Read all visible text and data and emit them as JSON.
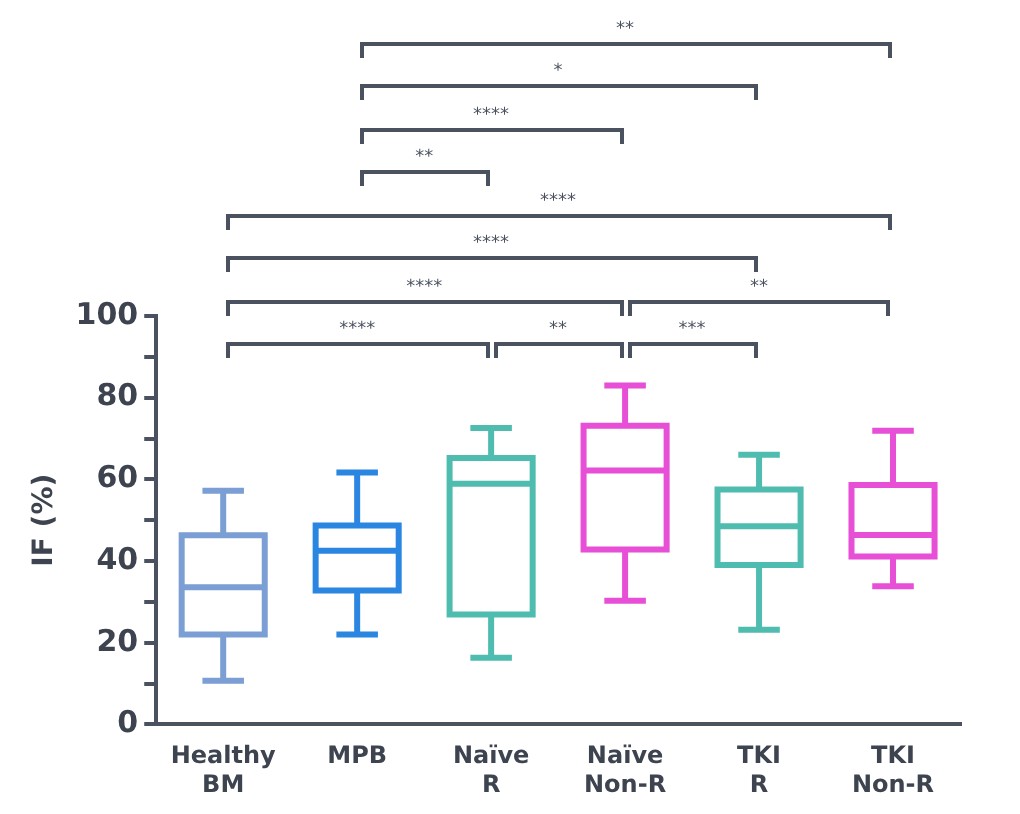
{
  "chart_data": {
    "type": "box",
    "ylabel": "IF (%)",
    "categories": [
      "Healthy BM",
      "MPB",
      "Naïve R",
      "Naïve Non-R",
      "TKI R",
      "TKI Non-R"
    ],
    "colors": [
      "#7b9fd4",
      "#2a86e0",
      "#4fbcb0",
      "#e64fd6",
      "#4fbcb0",
      "#e64fd6"
    ],
    "boxes": [
      {
        "low": 10.7,
        "q1": 22,
        "median": 33.6,
        "q3": 46.3,
        "high": 57.2
      },
      {
        "low": 22,
        "q1": 32.8,
        "median": 42.5,
        "q3": 48.7,
        "high": 61.7
      },
      {
        "low": 16.3,
        "q1": 26.9,
        "median": 58.9,
        "q3": 65.2,
        "high": 72.6
      },
      {
        "low": 30.3,
        "q1": 42.8,
        "median": 62.2,
        "q3": 73.1,
        "high": 83
      },
      {
        "low": 23.2,
        "q1": 39,
        "median": 48.5,
        "q3": 57.5,
        "high": 66
      },
      {
        "low": 33.8,
        "q1": 41.1,
        "median": 46.4,
        "q3": 58.6,
        "high": 71.9
      }
    ],
    "ylim": [
      0,
      100
    ],
    "yticks": [
      0,
      {
        "value": 10,
        "label": null
      },
      20,
      {
        "value": 30,
        "label": null
      },
      40,
      {
        "value": 50,
        "label": null
      },
      60,
      {
        "value": 70,
        "label": null
      },
      80,
      {
        "value": 90,
        "label": null
      },
      100
    ],
    "grid": false,
    "legend": false,
    "annotations": [
      "**",
      "*",
      "****",
      "**",
      "****",
      "****",
      "****",
      "**",
      "****",
      "**",
      "***"
    ]
  }
}
